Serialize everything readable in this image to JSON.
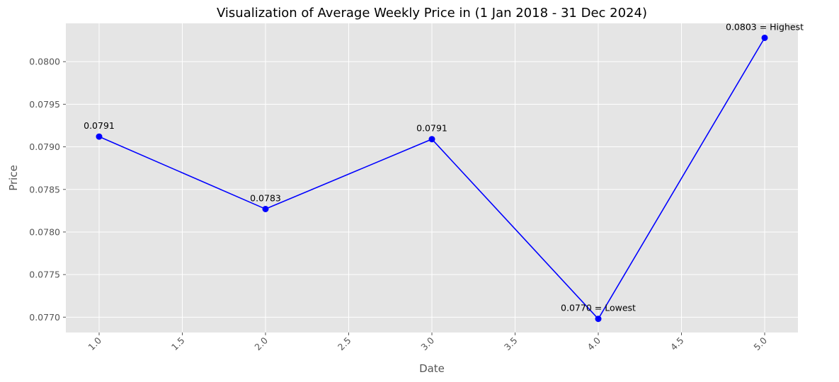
{
  "chart_data": {
    "type": "line",
    "title": "Visualization of Average Weekly Price in (1 Jan 2018 - 31 Dec 2024)",
    "xlabel": "Date",
    "ylabel": "Price",
    "x": [
      1.0,
      2.0,
      3.0,
      4.0,
      5.0
    ],
    "y": [
      0.07912,
      0.07827,
      0.07909,
      0.07698,
      0.08028
    ],
    "point_labels": [
      "0.0791",
      "0.0783",
      "0.0791",
      "0.0770 = Lowest",
      "0.0803 = Highest"
    ],
    "xlim": [
      0.8,
      5.2
    ],
    "ylim": [
      0.07682,
      0.08045
    ],
    "xticks": [
      1.0,
      1.5,
      2.0,
      2.5,
      3.0,
      3.5,
      4.0,
      4.5,
      5.0
    ],
    "xtick_labels": [
      "1.0",
      "1.5",
      "2.0",
      "2.5",
      "3.0",
      "3.5",
      "4.0",
      "4.5",
      "5.0"
    ],
    "yticks": [
      0.077,
      0.0775,
      0.078,
      0.0785,
      0.079,
      0.0795,
      0.08
    ],
    "ytick_labels": [
      "0.0770",
      "0.0775",
      "0.0780",
      "0.0785",
      "0.0790",
      "0.0795",
      "0.0800"
    ],
    "grid": true,
    "line_color": "#0000ff",
    "background_color": "#e5e5e5",
    "grid_color": "#ffffff"
  }
}
